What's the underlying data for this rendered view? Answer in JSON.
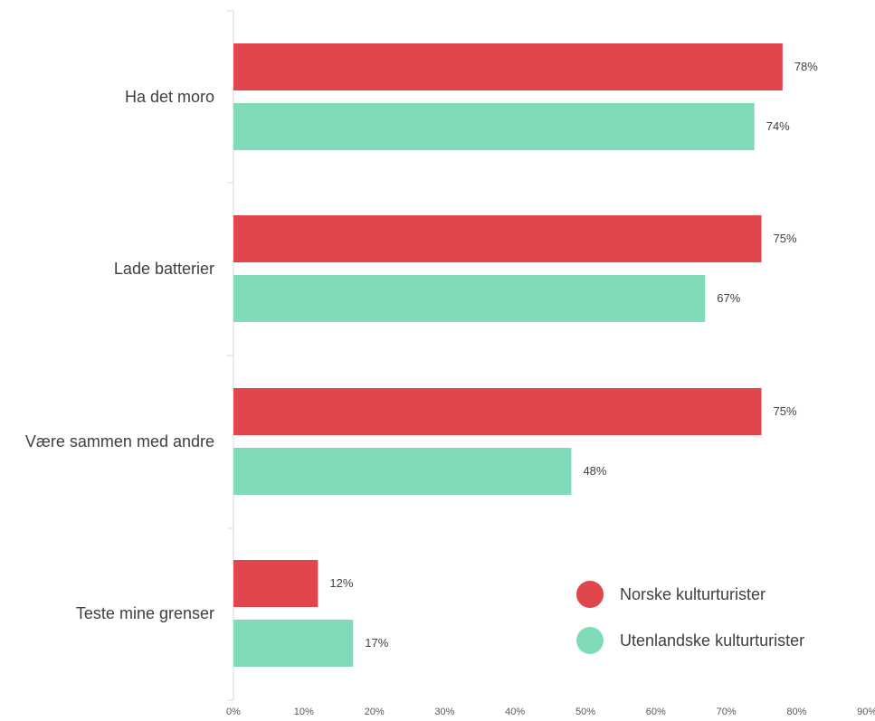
{
  "chart_data": {
    "type": "bar",
    "orientation": "horizontal",
    "categories": [
      "Ha det moro",
      "Lade batterier",
      "Være sammen med andre",
      "Teste mine grenser"
    ],
    "series": [
      {
        "name": "Norske kulturturister",
        "color": "#e0464b",
        "values": [
          78,
          75,
          75,
          12
        ]
      },
      {
        "name": "Utenlandske kulturturister",
        "color": "#80dbb8",
        "values": [
          74,
          67,
          48,
          17
        ]
      }
    ],
    "value_labels": [
      [
        "78%",
        "75%",
        "75%",
        "12%"
      ],
      [
        "74%",
        "67%",
        "48%",
        "17%"
      ]
    ],
    "xlim": [
      0,
      90
    ],
    "x_ticks": [
      "0%",
      "10%",
      "20%",
      "30%",
      "40%",
      "50%",
      "60%",
      "70%",
      "80%",
      "90%"
    ],
    "grid": false,
    "legend_position": "bottom-right"
  }
}
